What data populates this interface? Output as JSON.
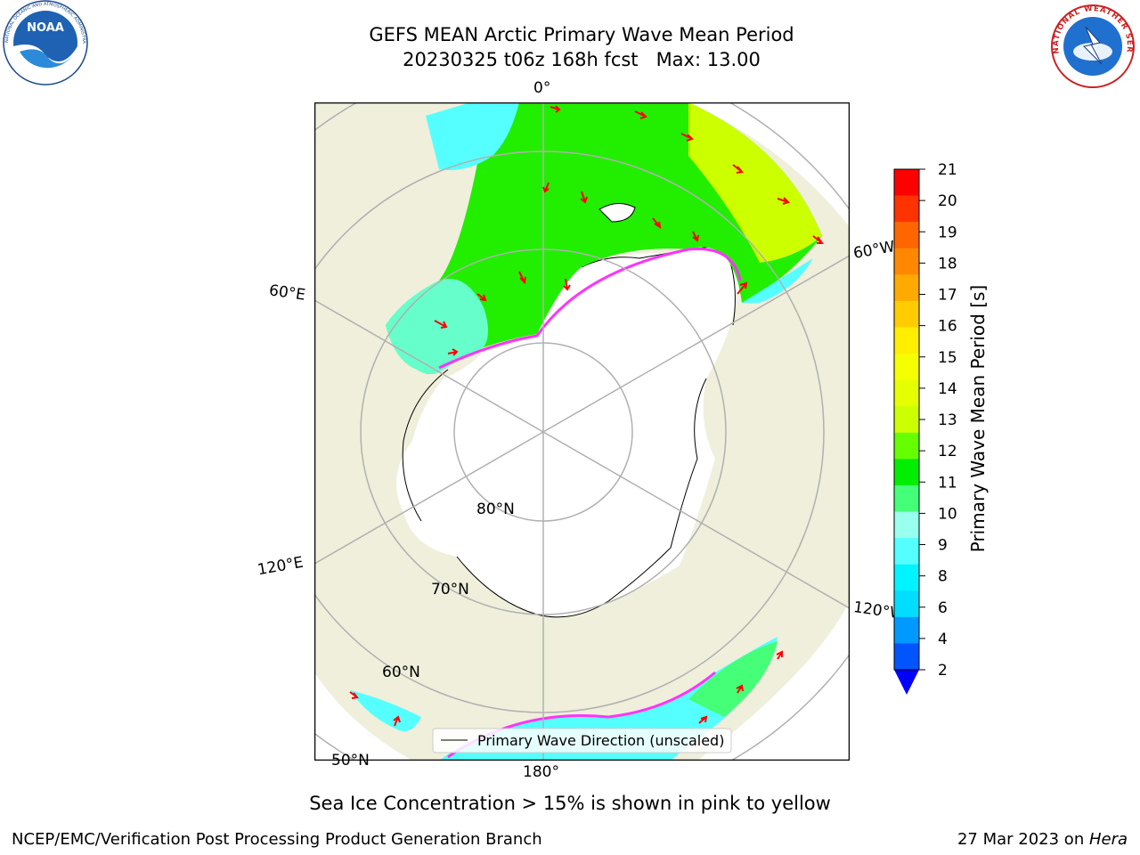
{
  "header": {
    "title_line1": "GEFS MEAN Arctic Primary Wave Mean Period",
    "title_line2": "20230325 t06z 168h fcst   Max: 13.00"
  },
  "logos": {
    "left": {
      "name": "NOAA",
      "ring_text": "NATIONAL OCEANIC AND ATMOSPHERIC ADMINISTRATION · U.S. DEPARTMENT OF COMMERCE"
    },
    "right": {
      "name": "NATIONAL WEATHER SERVICE"
    }
  },
  "map": {
    "projection": "north polar stereographic",
    "longitude_labels": [
      "0°",
      "60°E",
      "120°E",
      "180°",
      "120°W",
      "60°W"
    ],
    "latitude_labels": [
      "80°N",
      "70°N",
      "60°N",
      "50°N"
    ],
    "colors": {
      "land": "#efefdc",
      "ocean_ice": "#ffffff",
      "grid": "#b0b0b0",
      "arrow": "#ff0000",
      "ice_edge": "#ff33ff"
    }
  },
  "legend": {
    "label": "Primary Wave Direction (unscaled)"
  },
  "colorbar": {
    "title": "Primary Wave Mean Period [s]",
    "ticks": [
      "21",
      "20",
      "19",
      "18",
      "17",
      "16",
      "15",
      "14",
      "13",
      "12",
      "11",
      "10",
      "9",
      "8",
      "6",
      "4",
      "2"
    ],
    "colors_top_to_bottom": [
      "#ff0000",
      "#ff3300",
      "#ff6600",
      "#ff8800",
      "#ffaa00",
      "#ffcc00",
      "#ffee00",
      "#f6ff00",
      "#e6ff00",
      "#ccff00",
      "#66ff00",
      "#00ee00",
      "#44ff77",
      "#99ffee",
      "#55ffff",
      "#00f4ff",
      "#00ddff",
      "#0099ff",
      "#0055ff"
    ],
    "extend_color": "#0000ff"
  },
  "caption": "Sea Ice Concentration > 15% is shown in pink to yellow",
  "footer": {
    "left": "NCEP/EMC/Verification Post Processing Product Generation Branch",
    "right_prefix": "27 Mar 2023 on ",
    "right_italic": "Hera"
  }
}
